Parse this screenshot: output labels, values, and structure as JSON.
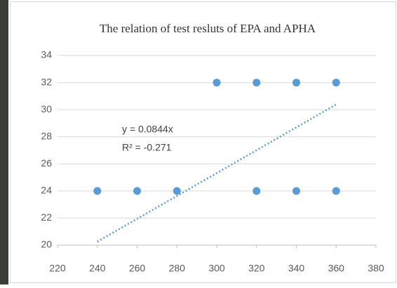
{
  "chart_data": {
    "type": "scatter",
    "title": "The relation  of test resluts of EPA and APHA",
    "x": [
      240,
      260,
      280,
      300,
      320,
      340,
      360,
      320,
      340,
      360
    ],
    "values": [
      24,
      24,
      24,
      32,
      32,
      32,
      32,
      24,
      24,
      24
    ],
    "color": "#5b9bd5",
    "xlim": [
      220,
      380
    ],
    "xticks": [
      220,
      240,
      260,
      280,
      300,
      320,
      340,
      360,
      380
    ],
    "ylim": [
      20,
      34
    ],
    "yticks": [
      20,
      22,
      24,
      26,
      28,
      30,
      32,
      34
    ],
    "grid": true,
    "trendline": {
      "slope": 0.0844,
      "xrange": [
        240,
        360
      ]
    },
    "annotations": [
      "y = 0.0844x",
      "R² = -0.271"
    ]
  }
}
